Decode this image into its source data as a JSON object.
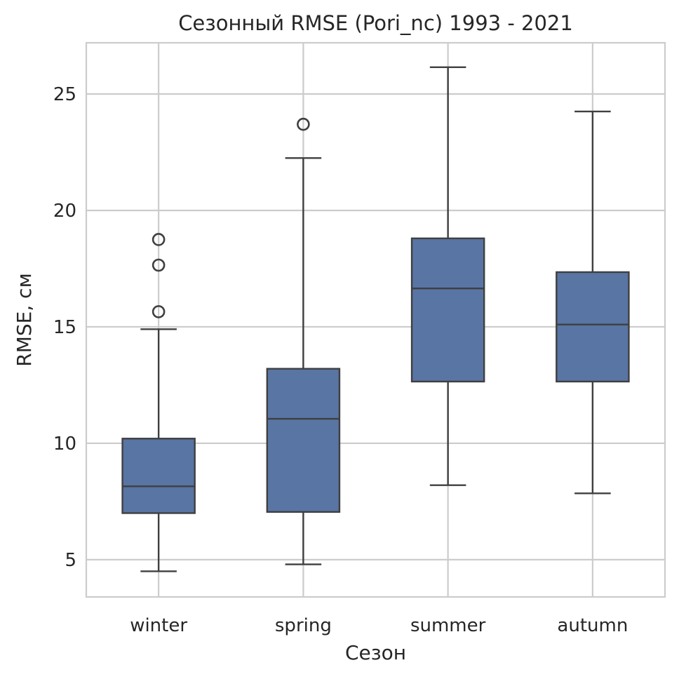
{
  "chart_data": {
    "type": "box",
    "title": "Сезонный RMSE (Pori_nc) 1993 - 2021",
    "xlabel": "Сезон",
    "ylabel": "RMSE, см",
    "ylim": [
      3.4,
      27.2
    ],
    "yticks": [
      5,
      10,
      15,
      20,
      25
    ],
    "grid": true,
    "box_color": "#5975a4",
    "categories": [
      "winter",
      "spring",
      "summer",
      "autumn"
    ],
    "boxes": [
      {
        "label": "winter",
        "whisker_low": 4.5,
        "q1": 7.0,
        "median": 8.15,
        "q3": 10.2,
        "whisker_high": 14.9,
        "outliers": [
          15.65,
          17.65,
          18.75
        ]
      },
      {
        "label": "spring",
        "whisker_low": 4.8,
        "q1": 7.05,
        "median": 11.05,
        "q3": 13.2,
        "whisker_high": 22.25,
        "outliers": [
          23.7
        ]
      },
      {
        "label": "summer",
        "whisker_low": 8.2,
        "q1": 12.65,
        "median": 16.65,
        "q3": 18.8,
        "whisker_high": 26.15,
        "outliers": []
      },
      {
        "label": "autumn",
        "whisker_low": 7.85,
        "q1": 12.65,
        "median": 15.1,
        "q3": 17.35,
        "whisker_high": 24.25,
        "outliers": []
      }
    ]
  }
}
